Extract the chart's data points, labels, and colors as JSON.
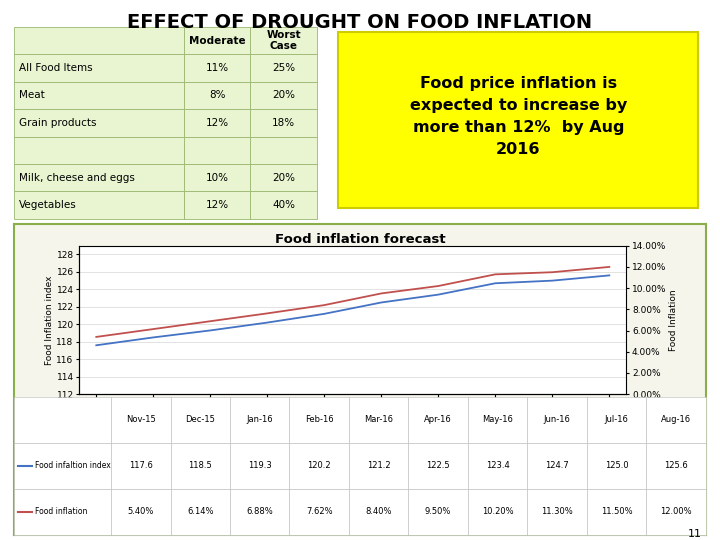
{
  "title": "EFFECT OF DROUGHT ON FOOD INFLATION",
  "table_rows": [
    [
      "",
      "Moderate",
      "Worst\nCase"
    ],
    [
      "All Food Items",
      "11%",
      "25%"
    ],
    [
      "Meat",
      "8%",
      "20%"
    ],
    [
      "Grain products",
      "12%",
      "18%"
    ],
    [
      "",
      "",
      ""
    ],
    [
      "Milk, cheese and eggs",
      "10%",
      "20%"
    ],
    [
      "Vegetables",
      "12%",
      "40%"
    ]
  ],
  "table_bg": "#e8f5d0",
  "table_border": "#9ab870",
  "callout_text": "Food price inflation is\nexpected to increase by\nmore than 12%  by Aug\n2016",
  "callout_bg": "#ffff00",
  "callout_border": "#cccc00",
  "chart_title": "Food inflation forecast",
  "months": [
    "Nov-15",
    "Dec-15",
    "Jan-16",
    "Feb-16",
    "Mar-16",
    "Apr-16",
    "May-16",
    "Jun-16",
    "Jul-16",
    "Aug-16"
  ],
  "food_index": [
    117.6,
    118.5,
    119.3,
    120.2,
    121.2,
    122.5,
    123.4,
    124.7,
    125.0,
    125.6
  ],
  "food_inflation": [
    5.4,
    6.14,
    6.88,
    7.62,
    8.4,
    9.5,
    10.2,
    11.3,
    11.5,
    12.0
  ],
  "index_color": "#4472c4",
  "inflation_color": "#c0504d",
  "index_ylim": [
    112,
    129
  ],
  "inflation_ylim": [
    0,
    14
  ],
  "index_yticks": [
    112,
    114,
    116,
    118,
    120,
    122,
    124,
    126,
    128
  ],
  "inflation_yticks": [
    0,
    2,
    4,
    6,
    8,
    10,
    12,
    14
  ],
  "chart_bg": "#ffffff",
  "chart_outer_bg": "#f5f5eb",
  "chart_border": "#8aaf4a",
  "page_number": "11",
  "legend_items": [
    "Food infaltion index",
    "Food inflation"
  ],
  "data_table_months": [
    "Nov-15",
    "Dec-15",
    "Jan-16",
    "Feb-16",
    "Mar-16",
    "Apr-16",
    "May-16",
    "Jun-16",
    "Jul-16",
    "Aug-16"
  ],
  "data_table_index": [
    "117.6",
    "118.5",
    "119.3",
    "120.2",
    "121.2",
    "122.5",
    "123.4",
    "124.7",
    "125.0",
    "125.6"
  ],
  "data_table_inflation": [
    "5.40%",
    "6.14%",
    "6.88%",
    "7.62%",
    "8.40%",
    "9.50%",
    "10.20%",
    "11.30%",
    "11.50%",
    "12.00%"
  ]
}
